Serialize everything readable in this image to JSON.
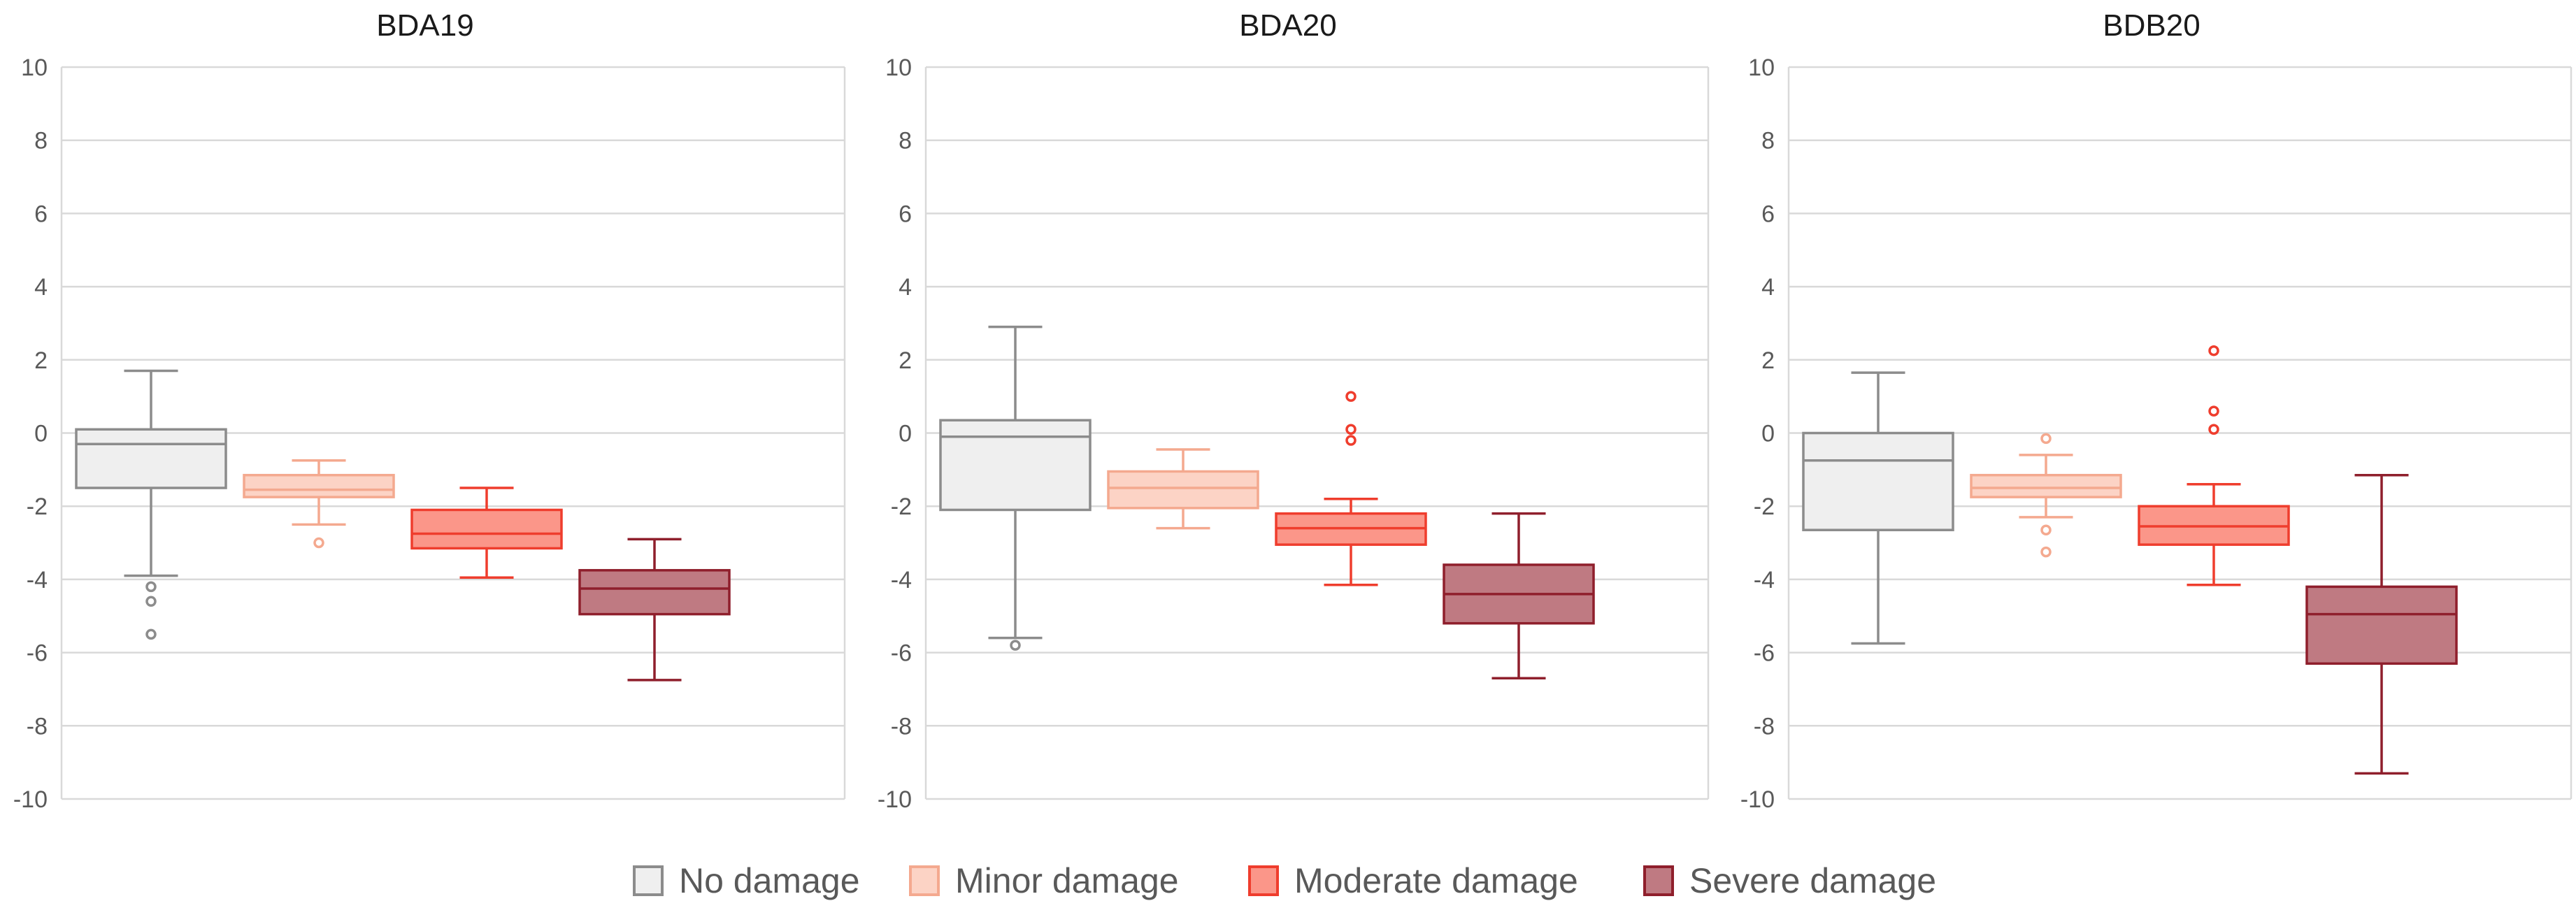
{
  "chart_data": [
    {
      "type": "box",
      "title": "BDA19",
      "ylim": [
        -10,
        10
      ],
      "yticks": [
        10,
        8,
        6,
        4,
        2,
        0,
        -2,
        -4,
        -6,
        -8,
        -10
      ],
      "grid": true,
      "series": [
        {
          "name": "No damage",
          "whisker_low": -3.9,
          "q1": -1.5,
          "median": -0.3,
          "q3": 0.1,
          "whisker_high": 1.7,
          "outliers": [
            -4.2,
            -4.6,
            -5.5
          ]
        },
        {
          "name": "Minor damage",
          "whisker_low": -2.5,
          "q1": -1.75,
          "median": -1.55,
          "q3": -1.15,
          "whisker_high": -0.75,
          "outliers": [
            -3.0
          ]
        },
        {
          "name": "Moderate damage",
          "whisker_low": -3.95,
          "q1": -3.15,
          "median": -2.75,
          "q3": -2.1,
          "whisker_high": -1.5,
          "outliers": []
        },
        {
          "name": "Severe damage",
          "whisker_low": -6.75,
          "q1": -4.95,
          "median": -4.25,
          "q3": -3.75,
          "whisker_high": -2.9,
          "outliers": []
        }
      ]
    },
    {
      "type": "box",
      "title": "BDA20",
      "ylim": [
        -10,
        10
      ],
      "yticks": [
        10,
        8,
        6,
        4,
        2,
        0,
        -2,
        -4,
        -6,
        -8,
        -10
      ],
      "grid": true,
      "series": [
        {
          "name": "No damage",
          "whisker_low": -5.6,
          "q1": -2.1,
          "median": -0.1,
          "q3": 0.35,
          "whisker_high": 2.9,
          "outliers": [
            -5.8
          ]
        },
        {
          "name": "Minor damage",
          "whisker_low": -2.6,
          "q1": -2.05,
          "median": -1.5,
          "q3": -1.05,
          "whisker_high": -0.45,
          "outliers": []
        },
        {
          "name": "Moderate damage",
          "whisker_low": -4.15,
          "q1": -3.05,
          "median": -2.6,
          "q3": -2.2,
          "whisker_high": -1.8,
          "outliers": [
            1.0,
            0.1,
            -0.2
          ]
        },
        {
          "name": "Severe damage",
          "whisker_low": -6.7,
          "q1": -5.2,
          "median": -4.4,
          "q3": -3.6,
          "whisker_high": -2.2,
          "outliers": []
        }
      ]
    },
    {
      "type": "box",
      "title": "BDB20",
      "ylim": [
        -10,
        10
      ],
      "yticks": [
        10,
        8,
        6,
        4,
        2,
        0,
        -2,
        -4,
        -6,
        -8,
        -10
      ],
      "grid": true,
      "series": [
        {
          "name": "No damage",
          "whisker_low": -5.75,
          "q1": -2.65,
          "median": -0.75,
          "q3": 0.0,
          "whisker_high": 1.65,
          "outliers": []
        },
        {
          "name": "Minor damage",
          "whisker_low": -2.3,
          "q1": -1.75,
          "median": -1.5,
          "q3": -1.15,
          "whisker_high": -0.6,
          "outliers": [
            -0.15,
            -2.65,
            -3.25
          ]
        },
        {
          "name": "Moderate damage",
          "whisker_low": -4.15,
          "q1": -3.05,
          "median": -2.55,
          "q3": -2.0,
          "whisker_high": -1.4,
          "outliers": [
            2.25,
            0.6,
            0.1
          ]
        },
        {
          "name": "Severe damage",
          "whisker_low": -9.3,
          "q1": -6.3,
          "median": -4.95,
          "q3": -4.2,
          "whisker_high": -1.15,
          "outliers": []
        }
      ]
    }
  ],
  "legend": {
    "placement": "bottom",
    "items": [
      {
        "label": "No damage",
        "fill": "#efefef",
        "stroke": "#8c8c8c"
      },
      {
        "label": "Minor damage",
        "fill": "#fcd3c5",
        "stroke": "#f4a98f"
      },
      {
        "label": "Moderate damage",
        "fill": "#fb9689",
        "stroke": "#ef3d2d"
      },
      {
        "label": "Severe damage",
        "fill": "#bf7a82",
        "stroke": "#8f1f2c"
      }
    ]
  },
  "colors": {
    "grid": "#d9d9d9",
    "axis_text": "#595959",
    "title_text": "#1a1a1a",
    "frame": "#d9d9d9"
  }
}
